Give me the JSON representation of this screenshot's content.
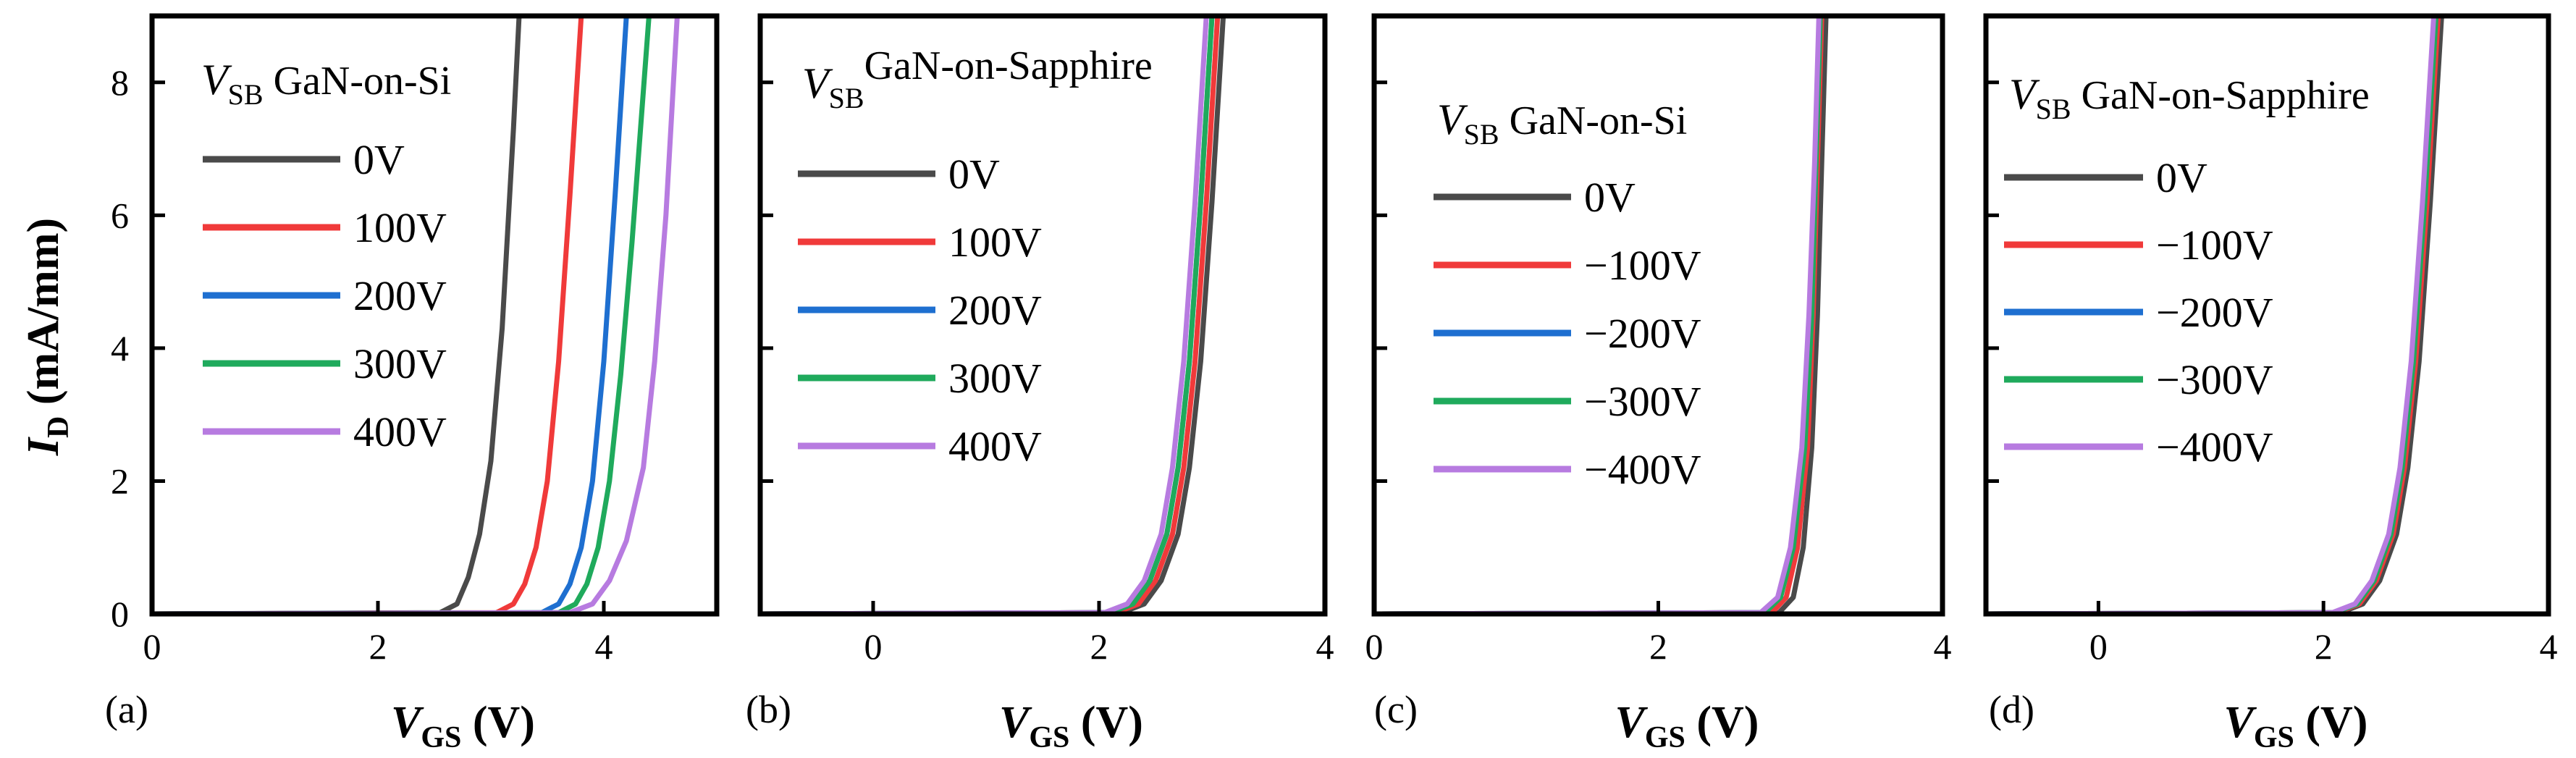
{
  "chart_data": [
    {
      "type": "line",
      "panel_label": "(a)",
      "legend_title": "GaN-on-Si",
      "legend_var": "V",
      "legend_var_sub": "SB",
      "xlabel": "V",
      "xlabel_sub": "GS",
      "xlabel_unit": " (V)",
      "ylabel": "I",
      "ylabel_sub": "D",
      "ylabel_unit": " (mA/mm)",
      "xlim": [
        0,
        5
      ],
      "ylim": [
        0,
        9
      ],
      "xticks": [
        "0",
        "2",
        "4"
      ],
      "xtick_values": [
        0,
        2,
        4
      ],
      "yticks": [
        "0",
        "2",
        "4",
        "6",
        "8"
      ],
      "ytick_values": [
        0,
        2,
        4,
        6,
        8
      ],
      "series": [
        {
          "name": "0V",
          "color": "#4a4a4a",
          "x": [
            0,
            2.55,
            2.7,
            2.8,
            2.9,
            3.0,
            3.1,
            3.2,
            3.25
          ],
          "y": [
            0,
            0.02,
            0.15,
            0.55,
            1.2,
            2.3,
            4.3,
            7.3,
            9
          ]
        },
        {
          "name": "100V",
          "color": "#f03a3a",
          "x": [
            0,
            3.05,
            3.2,
            3.3,
            3.4,
            3.5,
            3.6,
            3.7,
            3.8
          ],
          "y": [
            0,
            0.02,
            0.15,
            0.45,
            1.0,
            2.0,
            3.8,
            6.3,
            9
          ]
        },
        {
          "name": "200V",
          "color": "#1e6fd0",
          "x": [
            0,
            3.45,
            3.6,
            3.7,
            3.8,
            3.9,
            4.0,
            4.1,
            4.2
          ],
          "y": [
            0,
            0.02,
            0.15,
            0.45,
            1.0,
            2.0,
            3.8,
            6.3,
            9
          ]
        },
        {
          "name": "300V",
          "color": "#1faa5c",
          "x": [
            0,
            3.6,
            3.75,
            3.85,
            3.95,
            4.05,
            4.15,
            4.25,
            4.4
          ],
          "y": [
            0,
            0.02,
            0.15,
            0.45,
            1.0,
            2.0,
            3.6,
            5.6,
            9
          ]
        },
        {
          "name": "400V",
          "color": "#b77be0",
          "x": [
            0,
            3.7,
            3.9,
            4.05,
            4.2,
            4.35,
            4.45,
            4.55,
            4.65
          ],
          "y": [
            0,
            0.02,
            0.15,
            0.5,
            1.1,
            2.2,
            3.8,
            6.0,
            9
          ]
        }
      ]
    },
    {
      "type": "line",
      "panel_label": "(b)",
      "legend_title": "GaN-on-Sapphire",
      "legend_var": "V",
      "legend_var_sub": "SB",
      "xlabel": "V",
      "xlabel_sub": "GS",
      "xlabel_unit": " (V)",
      "xlim": [
        -1,
        4
      ],
      "ylim": [
        0,
        9
      ],
      "xticks": [
        "0",
        "2",
        "4"
      ],
      "xtick_values": [
        0,
        2,
        4
      ],
      "series": [
        {
          "name": "0V",
          "color": "#4a4a4a",
          "x": [
            -1,
            2.2,
            2.4,
            2.55,
            2.7,
            2.8,
            2.9,
            3.0,
            3.1
          ],
          "y": [
            0,
            0.02,
            0.15,
            0.5,
            1.2,
            2.2,
            3.8,
            6.2,
            9
          ]
        },
        {
          "name": "100V",
          "color": "#f03a3a",
          "x": [
            -1,
            2.15,
            2.35,
            2.5,
            2.65,
            2.75,
            2.85,
            2.95,
            3.05
          ],
          "y": [
            0,
            0.02,
            0.15,
            0.5,
            1.2,
            2.2,
            3.8,
            6.2,
            9
          ]
        },
        {
          "name": "200V",
          "color": "#1e6fd0",
          "x": [
            -1,
            2.1,
            2.3,
            2.45,
            2.6,
            2.7,
            2.8,
            2.9,
            3.0
          ],
          "y": [
            0,
            0.02,
            0.15,
            0.5,
            1.2,
            2.2,
            3.8,
            6.2,
            9
          ]
        },
        {
          "name": "300V",
          "color": "#1faa5c",
          "x": [
            -1,
            2.1,
            2.3,
            2.45,
            2.6,
            2.7,
            2.8,
            2.9,
            3.0
          ],
          "y": [
            0,
            0.02,
            0.15,
            0.5,
            1.2,
            2.2,
            3.8,
            6.2,
            9
          ]
        },
        {
          "name": "400V",
          "color": "#b77be0",
          "x": [
            -1,
            2.05,
            2.25,
            2.4,
            2.55,
            2.65,
            2.75,
            2.85,
            2.95
          ],
          "y": [
            0,
            0.02,
            0.15,
            0.5,
            1.2,
            2.2,
            3.8,
            6.2,
            9
          ]
        }
      ]
    },
    {
      "type": "line",
      "panel_label": "(c)",
      "legend_title": "GaN-on-Si",
      "legend_var": "V",
      "legend_var_sub": "SB",
      "xlabel": "V",
      "xlabel_sub": "GS",
      "xlabel_unit": " (V)",
      "xlim": [
        0,
        4
      ],
      "ylim": [
        0,
        9
      ],
      "xticks": [
        "0",
        "2",
        "4"
      ],
      "xtick_values": [
        0,
        2,
        4
      ],
      "series": [
        {
          "name": "0V",
          "color": "#4a4a4a",
          "x": [
            0,
            2.85,
            2.95,
            3.02,
            3.08,
            3.12,
            3.15,
            3.18
          ],
          "y": [
            0,
            0.02,
            0.25,
            1.0,
            2.5,
            4.5,
            6.8,
            9
          ]
        },
        {
          "name": "−100V",
          "color": "#f03a3a",
          "x": [
            0,
            2.8,
            2.9,
            2.98,
            3.05,
            3.09,
            3.12,
            3.15
          ],
          "y": [
            0,
            0.02,
            0.25,
            1.0,
            2.5,
            4.5,
            6.8,
            9
          ]
        },
        {
          "name": "−200V",
          "color": "#1e6fd0",
          "x": [
            0,
            2.75,
            2.86,
            2.95,
            3.03,
            3.08,
            3.11,
            3.14
          ],
          "y": [
            0,
            0.02,
            0.25,
            1.0,
            2.5,
            4.5,
            6.8,
            9
          ]
        },
        {
          "name": "−300V",
          "color": "#1faa5c",
          "x": [
            0,
            2.75,
            2.86,
            2.95,
            3.03,
            3.08,
            3.11,
            3.14
          ],
          "y": [
            0,
            0.02,
            0.25,
            1.0,
            2.5,
            4.5,
            6.8,
            9
          ]
        },
        {
          "name": "−400V",
          "color": "#b77be0",
          "x": [
            0,
            2.72,
            2.84,
            2.93,
            3.01,
            3.06,
            3.1,
            3.13
          ],
          "y": [
            0,
            0.02,
            0.25,
            1.0,
            2.5,
            4.5,
            6.8,
            9
          ]
        }
      ]
    },
    {
      "type": "line",
      "panel_label": "(d)",
      "legend_title": "GaN-on-Sapphire",
      "legend_var": "V",
      "legend_var_sub": "SB",
      "xlabel": "V",
      "xlabel_sub": "GS",
      "xlabel_unit": " (V)",
      "xlim": [
        -1,
        4
      ],
      "ylim": [
        0,
        9
      ],
      "xticks": [
        "0",
        "2",
        "4"
      ],
      "xtick_values": [
        0,
        2,
        4
      ],
      "series": [
        {
          "name": "0V",
          "color": "#4a4a4a",
          "x": [
            -1,
            2.15,
            2.35,
            2.5,
            2.65,
            2.75,
            2.85,
            2.95,
            3.05
          ],
          "y": [
            0,
            0.02,
            0.15,
            0.5,
            1.2,
            2.2,
            3.8,
            6.2,
            9
          ]
        },
        {
          "name": "−100V",
          "color": "#f03a3a",
          "x": [
            -1,
            2.12,
            2.32,
            2.47,
            2.62,
            2.72,
            2.82,
            2.92,
            3.02
          ],
          "y": [
            0,
            0.02,
            0.15,
            0.5,
            1.2,
            2.2,
            3.8,
            6.2,
            9
          ]
        },
        {
          "name": "−200V",
          "color": "#1e6fd0",
          "x": [
            -1,
            2.1,
            2.3,
            2.45,
            2.6,
            2.7,
            2.8,
            2.9,
            3.0
          ],
          "y": [
            0,
            0.02,
            0.15,
            0.5,
            1.2,
            2.2,
            3.8,
            6.2,
            9
          ]
        },
        {
          "name": "−300V",
          "color": "#1faa5c",
          "x": [
            -1,
            2.1,
            2.3,
            2.45,
            2.6,
            2.7,
            2.8,
            2.9,
            3.0
          ],
          "y": [
            0,
            0.02,
            0.15,
            0.5,
            1.2,
            2.2,
            3.8,
            6.2,
            9
          ]
        },
        {
          "name": "−400V",
          "color": "#b77be0",
          "x": [
            -1,
            2.08,
            2.28,
            2.43,
            2.58,
            2.68,
            2.78,
            2.88,
            2.98
          ],
          "y": [
            0,
            0.02,
            0.15,
            0.5,
            1.2,
            2.2,
            3.8,
            6.2,
            9
          ]
        }
      ]
    }
  ]
}
